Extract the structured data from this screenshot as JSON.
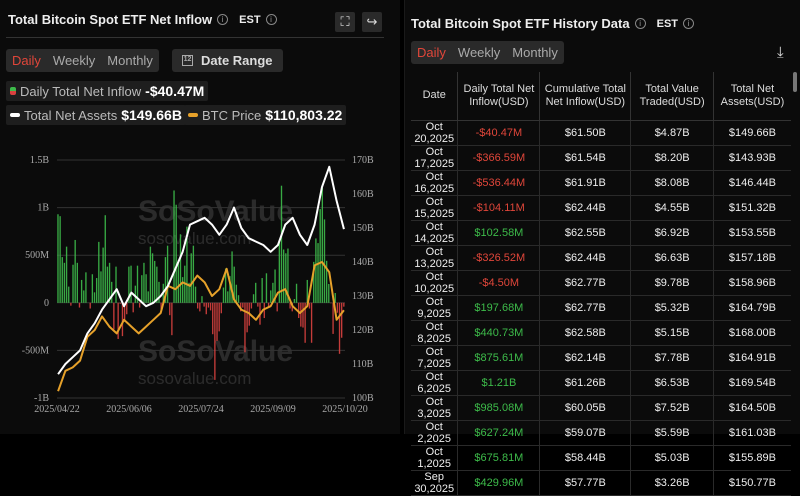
{
  "left": {
    "title": "Total Bitcoin Spot ETF Net Inflow",
    "tz": "EST",
    "tabs": [
      "Daily",
      "Weekly",
      "Monthly"
    ],
    "active_tab": "Daily",
    "date_range_label": "Date Range",
    "calendar_day": "12",
    "legend": {
      "inflow_label": "Daily Total Net Inflow",
      "inflow_value": "-$40.47M",
      "assets_label": "Total Net Assets",
      "assets_value": "$149.66B",
      "btc_label": "BTC Price",
      "btc_value": "$110,803.22"
    },
    "watermark": {
      "brand": "SoSoValue",
      "url": "sosovalue.com"
    }
  },
  "right": {
    "title": "Total Bitcoin Spot ETF History Data",
    "tz": "EST",
    "tabs": [
      "Daily",
      "Weekly",
      "Monthly"
    ],
    "active_tab": "Daily",
    "columns": [
      "Date",
      "Daily Total Net Inflow(USD)",
      "Cumulative Total Net Inflow(USD)",
      "Total Value Traded(USD)",
      "Total Net Assets(USD)"
    ],
    "rows": [
      [
        "Oct 20,2025",
        "-$40.47M",
        "$61.50B",
        "$4.87B",
        "$149.66B"
      ],
      [
        "Oct 17,2025",
        "-$366.59M",
        "$61.54B",
        "$8.20B",
        "$143.93B"
      ],
      [
        "Oct 16,2025",
        "-$536.44M",
        "$61.91B",
        "$8.08B",
        "$146.44B"
      ],
      [
        "Oct 15,2025",
        "-$104.11M",
        "$62.44B",
        "$4.55B",
        "$151.32B"
      ],
      [
        "Oct 14,2025",
        "$102.58M",
        "$62.55B",
        "$6.92B",
        "$153.55B"
      ],
      [
        "Oct 13,2025",
        "-$326.52M",
        "$62.44B",
        "$6.63B",
        "$157.18B"
      ],
      [
        "Oct 10,2025",
        "-$4.50M",
        "$62.77B",
        "$9.78B",
        "$158.96B"
      ],
      [
        "Oct 9,2025",
        "$197.68M",
        "$62.77B",
        "$5.32B",
        "$164.79B"
      ],
      [
        "Oct 8,2025",
        "$440.73M",
        "$62.58B",
        "$5.15B",
        "$168.00B"
      ],
      [
        "Oct 7,2025",
        "$875.61M",
        "$62.14B",
        "$7.78B",
        "$164.91B"
      ],
      [
        "Oct 6,2025",
        "$1.21B",
        "$61.26B",
        "$6.53B",
        "$169.54B"
      ],
      [
        "Oct 3,2025",
        "$985.08M",
        "$60.05B",
        "$7.52B",
        "$164.50B"
      ],
      [
        "Oct 2,2025",
        "$627.24M",
        "$59.07B",
        "$5.59B",
        "$161.03B"
      ],
      [
        "Oct 1,2025",
        "$675.81M",
        "$58.44B",
        "$5.03B",
        "$155.89B"
      ],
      [
        "Sep 30,2025",
        "$429.96M",
        "$57.77B",
        "$3.26B",
        "$150.77B"
      ]
    ]
  },
  "colors": {
    "accent": "#e0463a",
    "positive": "#3dbb4a",
    "negative": "#d9413f",
    "assets": "#ffffff",
    "btc": "#e6a12a"
  },
  "chart_data": {
    "type": "bar+line",
    "x_ticks": [
      "2025/04/22",
      "2025/06/06",
      "2025/07/24",
      "2025/09/09",
      "2025/10/20"
    ],
    "y_left": {
      "ticks": [
        "1.5B",
        "1B",
        "500M",
        "0",
        "-500M",
        "-1B"
      ],
      "range_millions": [
        -1000,
        1500
      ]
    },
    "y_right": {
      "ticks": [
        "170B",
        "160B",
        "150B",
        "140B",
        "130B",
        "120B",
        "110B",
        "100B"
      ],
      "range_billions": [
        100,
        170
      ]
    },
    "grid": true,
    "series": [
      {
        "name": "Daily Total Net Inflow",
        "type": "bar",
        "unit": "M USD",
        "values": [
          930,
          910,
          480,
          420,
          590,
          170,
          -30,
          400,
          660,
          420,
          -50,
          240,
          130,
          320,
          0,
          -60,
          300,
          110,
          260,
          640,
          330,
          580,
          920,
          380,
          420,
          220,
          -280,
          380,
          -380,
          -10,
          -350,
          -200,
          -120,
          380,
          390,
          -100,
          180,
          390,
          -50,
          290,
          420,
          300,
          120,
          590,
          520,
          440,
          380,
          220,
          -70,
          200,
          480,
          600,
          -130,
          -340,
          1180,
          1030,
          450,
          720,
          270,
          390,
          800,
          210,
          520,
          600,
          170,
          -60,
          -90,
          70,
          -40,
          -120,
          -50,
          -80,
          -330,
          -810,
          -400,
          -300,
          -110,
          160,
          360,
          120,
          280,
          540,
          380,
          190,
          80,
          -90,
          -50,
          -520,
          -310,
          -240,
          -60,
          90,
          210,
          -40,
          -230,
          260,
          -160,
          310,
          -50,
          130,
          210,
          350,
          -90,
          660,
          1230,
          560,
          520,
          570,
          -60,
          -90,
          40,
          200,
          -160,
          -250,
          -260,
          -420,
          240,
          -60,
          -420,
          430,
          676,
          627,
          985,
          1210,
          876,
          441,
          198,
          -4.5,
          -327,
          103,
          -104,
          -536,
          -367,
          -40.47
        ]
      },
      {
        "name": "Total Net Assets",
        "type": "line",
        "unit": "B USD",
        "values": [
          107,
          110,
          112,
          114,
          119,
          122,
          126,
          129,
          132,
          127,
          131,
          129,
          127,
          128,
          130,
          133,
          138,
          143,
          151,
          152,
          153,
          151,
          148,
          151,
          156,
          150,
          147,
          146,
          145,
          143,
          145,
          151,
          153,
          148,
          145,
          151,
          162,
          168,
          158,
          149.66
        ]
      },
      {
        "name": "BTC Price",
        "type": "line",
        "unit": "USD",
        "values": [
          87000,
          93000,
          94000,
          96000,
          103000,
          105000,
          109000,
          106000,
          104000,
          108000,
          106000,
          104000,
          106000,
          108000,
          110000,
          118000,
          117000,
          119000,
          118000,
          121000,
          119000,
          115000,
          117000,
          123000,
          114000,
          111000,
          110000,
          108000,
          111000,
          112000,
          116000,
          117000,
          112000,
          110000,
          112000,
          124000,
          125000,
          122000,
          108000,
          110803.22
        ]
      }
    ]
  }
}
